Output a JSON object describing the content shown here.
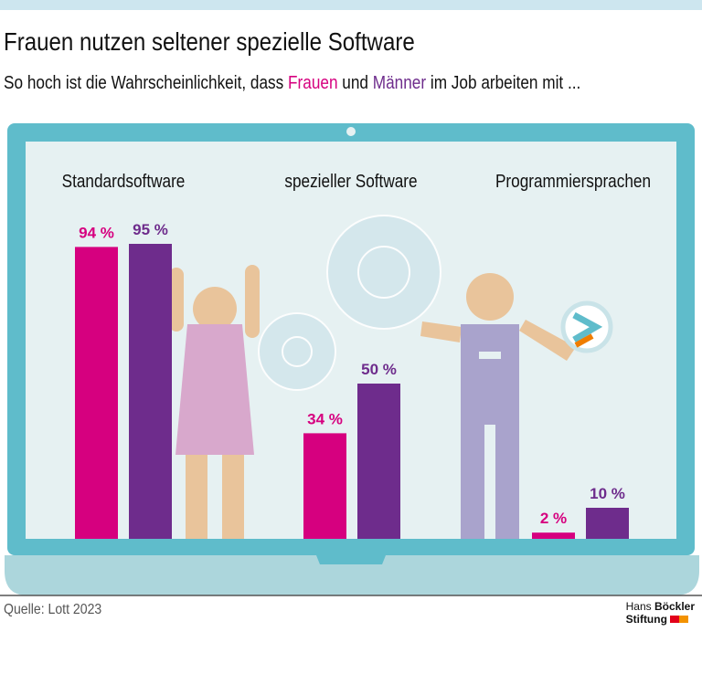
{
  "header": {
    "title": "Frauen nutzen seltener spezielle Software",
    "subtitle_parts": [
      "So hoch ist die Wahrscheinlichkeit, dass ",
      "Frauen",
      " und ",
      "Männer",
      " im Job arbeiten mit ..."
    ]
  },
  "footer": {
    "source": "Quelle: Lott 2023",
    "logo_line1_a": "Hans ",
    "logo_line1_b": "Böckler",
    "logo_line2": "Stiftung"
  },
  "colors": {
    "frauen": "#d6007f",
    "maenner": "#6e2c8c",
    "laptop_frame": "#5fbccb",
    "screen": "#e6f1f2",
    "laptop_base": "#acd6dc"
  },
  "chart_data": {
    "type": "bar",
    "categories": [
      "Standardsoftware",
      "spezieller Software",
      "Programmiersprachen"
    ],
    "series": [
      {
        "name": "Frauen",
        "values": [
          94,
          34,
          2
        ]
      },
      {
        "name": "Männer",
        "values": [
          95,
          50,
          10
        ]
      }
    ],
    "unit": "%",
    "ylim": [
      0,
      100
    ]
  }
}
